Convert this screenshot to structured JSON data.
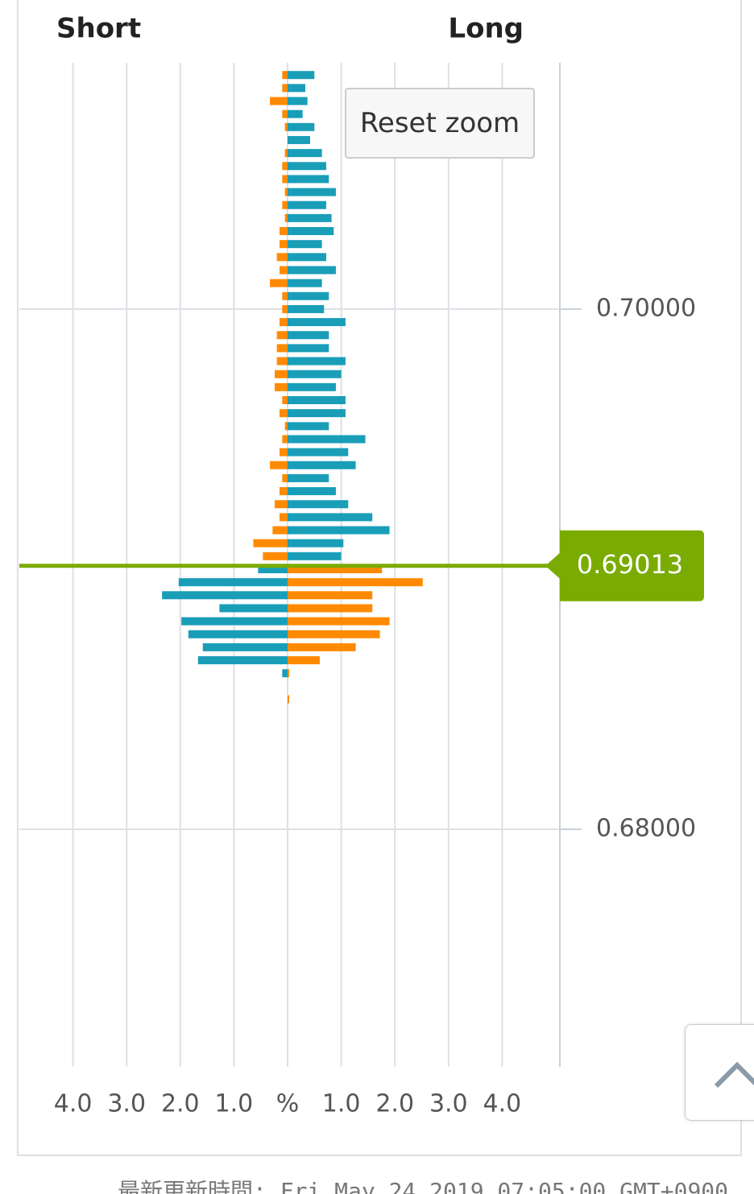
{
  "chart_data": {
    "type": "bar",
    "orientation": "horizontal",
    "short_label": "Short",
    "long_label": "Long",
    "categories": [
      0.709,
      0.7085,
      0.708,
      0.7075,
      0.707,
      0.7065,
      0.706,
      0.7055,
      0.705,
      0.7045,
      0.704,
      0.7035,
      0.703,
      0.7025,
      0.702,
      0.7015,
      0.701,
      0.7005,
      0.7,
      0.6995,
      0.699,
      0.6985,
      0.698,
      0.6975,
      0.697,
      0.6965,
      0.696,
      0.6955,
      0.695,
      0.6945,
      0.694,
      0.6935,
      0.693,
      0.6925,
      0.692,
      0.6915,
      0.691,
      0.6905,
      0.69,
      0.6895,
      0.689,
      0.6885,
      0.688,
      0.6875,
      0.687,
      0.6865,
      0.686,
      0.6855,
      0.685
    ],
    "series": [
      {
        "color": "#1a9eb8",
        "values": [
          0.5,
          0.33,
          0.37,
          0.28,
          0.5,
          0.42,
          0.64,
          0.72,
          0.77,
          0.9,
          0.72,
          0.82,
          0.86,
          0.64,
          0.72,
          0.9,
          0.64,
          0.77,
          0.68,
          1.08,
          0.77,
          0.77,
          1.08,
          1.0,
          0.9,
          1.08,
          1.08,
          0.77,
          1.45,
          1.13,
          1.27,
          0.77,
          0.9,
          1.13,
          1.58,
          1.9,
          1.04,
          1.0,
          -0.55,
          -2.03,
          -2.34,
          -1.27,
          -1.98,
          -1.85,
          -1.58,
          -1.67,
          -0.1,
          0,
          0
        ]
      },
      {
        "color": "#ff8a00",
        "values": [
          -0.1,
          -0.1,
          -0.33,
          -0.1,
          -0.05,
          0,
          -0.05,
          -0.1,
          -0.1,
          -0.05,
          -0.1,
          -0.05,
          -0.15,
          -0.15,
          -0.2,
          -0.15,
          -0.33,
          -0.1,
          -0.1,
          -0.15,
          -0.2,
          -0.2,
          -0.2,
          -0.24,
          -0.24,
          -0.1,
          -0.15,
          -0.05,
          -0.1,
          -0.15,
          -0.33,
          -0.1,
          -0.15,
          -0.24,
          -0.15,
          -0.28,
          -0.64,
          -0.46,
          1.76,
          2.52,
          1.58,
          1.58,
          1.9,
          1.72,
          1.27,
          0.6,
          0.03,
          0,
          0.03
        ]
      }
    ],
    "xlim": [
      -5,
      5
    ],
    "xticks": [
      {
        "value": -4,
        "label": "4.0"
      },
      {
        "value": -3,
        "label": "3.0"
      },
      {
        "value": -2,
        "label": "2.0"
      },
      {
        "value": -1,
        "label": "1.0"
      },
      {
        "value": 0,
        "label": "%"
      },
      {
        "value": 1,
        "label": "1.0"
      },
      {
        "value": 2,
        "label": "2.0"
      },
      {
        "value": 3,
        "label": "3.0"
      },
      {
        "value": 4,
        "label": "4.0"
      }
    ],
    "ylim": [
      0.67087,
      0.70947
    ],
    "yticks": [
      {
        "value": 0.7,
        "label": "0.70000"
      },
      {
        "value": 0.68,
        "label": "0.68000"
      }
    ],
    "current_price": {
      "value": 0.69013,
      "label": "0.69013",
      "color": "#7aab00"
    },
    "grid": true
  },
  "ui": {
    "reset_zoom": "Reset zoom",
    "footer": "最新更新時間: Fri May 24 2019 07:05:00 GMT+0900"
  }
}
